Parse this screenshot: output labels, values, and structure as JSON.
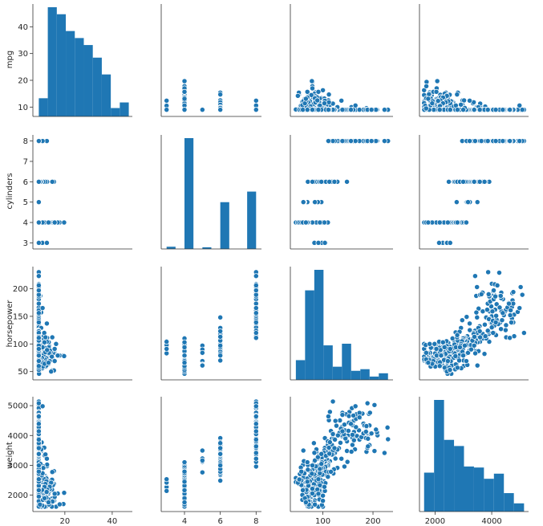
{
  "chart_data": {
    "type": "scatter",
    "title": "",
    "variables": [
      "mpg",
      "cylinders",
      "horsepower",
      "weight"
    ],
    "axis_labels": {
      "mpg": "mpg",
      "cylinders": "cylinders",
      "horsepower": "horsepower",
      "weight": "weight"
    },
    "ranges": {
      "mpg": [
        6.5,
        48.5
      ],
      "cylinders": [
        2.7,
        8.3
      ],
      "horsepower": [
        35,
        240
      ],
      "weight": [
        1450,
        5300
      ]
    },
    "ticks": {
      "mpg": {
        "values": [
          10,
          20,
          30,
          40
        ],
        "labels": [
          "10",
          "20",
          "30",
          "40"
        ]
      },
      "cylinders": {
        "values": [
          3,
          4,
          5,
          6,
          7,
          8
        ],
        "labels": [
          "3",
          "4",
          "5",
          "6",
          "7",
          "8"
        ]
      },
      "horsepower": {
        "values": [
          50,
          100,
          150,
          200
        ],
        "labels": [
          "50",
          "100",
          "150",
          "200"
        ]
      },
      "weight": {
        "values": [
          2000,
          3000,
          4000,
          5000
        ],
        "labels": [
          "2000",
          "3000",
          "4000",
          "5000"
        ]
      }
    },
    "bottom_ticks": {
      "mpg": {
        "values": [
          20,
          40
        ],
        "labels": [
          "20",
          "40"
        ]
      },
      "cylinders": {
        "values": [
          4,
          6,
          8
        ],
        "labels": [
          "4",
          "6",
          "8"
        ]
      },
      "horsepower": {
        "values": [
          100,
          200
        ],
        "labels": [
          "100",
          "200"
        ]
      },
      "weight": {
        "values": [
          2000,
          4000
        ],
        "labels": [
          "2000",
          "4000"
        ]
      }
    },
    "histograms": {
      "mpg": {
        "edges": [
          9,
          12.8,
          16.6,
          20.4,
          24.2,
          28,
          31.8,
          35.6,
          39.4,
          43.2,
          47
        ],
        "counts": [
          13,
          78,
          73,
          61,
          56,
          51,
          42,
          30,
          6,
          10
        ]
      },
      "cylinders": {
        "edges": [
          3,
          3.5,
          4,
          4.5,
          5,
          5.5,
          6,
          6.5,
          7,
          7.5,
          8
        ],
        "counts": [
          4,
          0,
          199,
          0,
          3,
          0,
          84,
          0,
          0,
          103
        ]
      },
      "horsepower": {
        "edges": [
          46,
          64.4,
          82.8,
          101.2,
          119.6,
          138,
          156.4,
          174.8,
          193.2,
          211.6,
          230
        ],
        "counts": [
          24,
          109,
          134,
          42,
          16,
          44,
          11,
          13,
          4,
          8
        ]
      },
      "weight": {
        "edges": [
          1613,
          1965,
          2317,
          2669,
          3021,
          3373,
          3725,
          4077,
          4429,
          4781,
          5140
        ],
        "counts": [
          38,
          109,
          70,
          64,
          44,
          43,
          32,
          37,
          18,
          8
        ]
      }
    },
    "legend": "none",
    "grid": false,
    "color": "#1f77b4"
  }
}
